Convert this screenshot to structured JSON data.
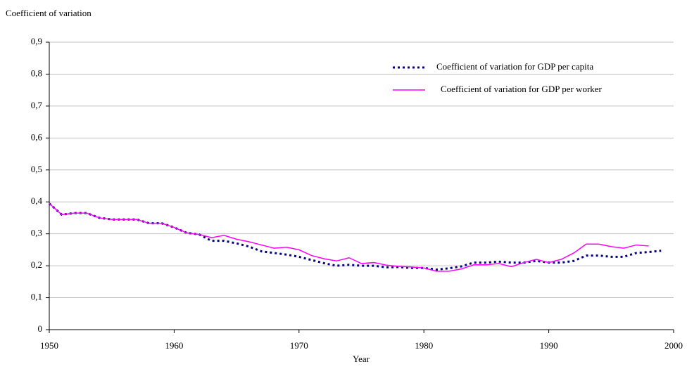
{
  "chart_data": {
    "type": "line",
    "y_label": "Coefficient of variation",
    "x_label": "Year",
    "x": [
      1950,
      1951,
      1952,
      1953,
      1954,
      1955,
      1956,
      1957,
      1958,
      1959,
      1960,
      1961,
      1962,
      1963,
      1964,
      1965,
      1966,
      1967,
      1968,
      1969,
      1970,
      1971,
      1972,
      1973,
      1974,
      1975,
      1976,
      1977,
      1978,
      1979,
      1980,
      1981,
      1982,
      1983,
      1984,
      1985,
      1986,
      1987,
      1988,
      1989,
      1990,
      1991,
      1992,
      1993,
      1994,
      1995,
      1996,
      1997,
      1998,
      1999
    ],
    "series": [
      {
        "name": "Coefficient of variation for GDP per capita",
        "color": "#000080",
        "dash": "dotted",
        "values": [
          0.395,
          0.36,
          0.365,
          0.365,
          0.35,
          0.345,
          0.345,
          0.345,
          0.333,
          0.333,
          0.32,
          0.303,
          0.298,
          0.278,
          0.278,
          0.27,
          0.26,
          0.245,
          0.24,
          0.235,
          0.228,
          0.218,
          0.208,
          0.2,
          0.203,
          0.2,
          0.2,
          0.195,
          0.196,
          0.193,
          0.193,
          0.188,
          0.192,
          0.198,
          0.21,
          0.21,
          0.213,
          0.21,
          0.21,
          0.215,
          0.21,
          0.21,
          0.215,
          0.232,
          0.232,
          0.228,
          0.228,
          0.24,
          0.243,
          0.247
        ]
      },
      {
        "name": "Coefficient of variation for GDP per worker",
        "color": "#ff00ff",
        "dash": "solid",
        "values": [
          0.395,
          0.36,
          0.365,
          0.365,
          0.35,
          0.345,
          0.345,
          0.345,
          0.333,
          0.333,
          0.32,
          0.303,
          0.298,
          0.288,
          0.295,
          0.283,
          0.275,
          0.265,
          0.255,
          0.258,
          0.25,
          0.232,
          0.222,
          0.215,
          0.225,
          0.207,
          0.21,
          0.202,
          0.198,
          0.196,
          0.193,
          0.183,
          0.183,
          0.19,
          0.203,
          0.203,
          0.207,
          0.197,
          0.21,
          0.22,
          0.21,
          0.22,
          0.24,
          0.268,
          0.268,
          0.26,
          0.255,
          0.265,
          0.262,
          null
        ]
      }
    ],
    "xlim": [
      1950,
      2000
    ],
    "xticks": [
      1950,
      1960,
      1970,
      1980,
      1990,
      2000
    ],
    "ylim": [
      0,
      0.9
    ],
    "yticks": [
      0,
      {
        "value": 0.1,
        "label": "0,1"
      },
      {
        "value": 0.2,
        "label": "0,2"
      },
      {
        "value": 0.3,
        "label": "0,3"
      },
      {
        "value": 0.4,
        "label": "0,4"
      },
      {
        "value": 0.5,
        "label": "0,5"
      },
      {
        "value": 0.6,
        "label": "0,6"
      },
      {
        "value": 0.7,
        "label": "0,7"
      },
      {
        "value": 0.8,
        "label": "0,8"
      },
      {
        "value": 0.9,
        "label": "0,9"
      }
    ],
    "grid": true,
    "legend": "top-right"
  }
}
